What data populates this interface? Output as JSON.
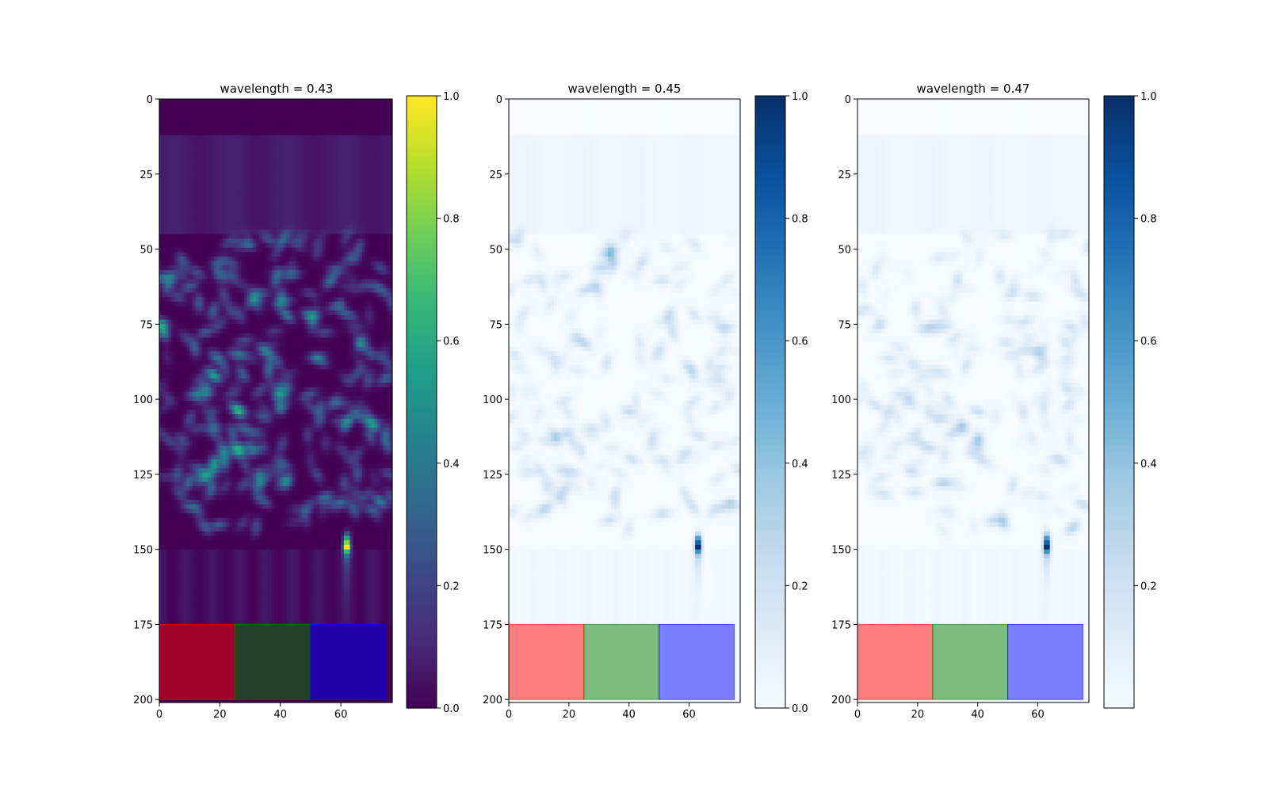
{
  "chart_data": [
    {
      "type": "heatmap",
      "title": "wavelength = 0.43",
      "colormap": "viridis",
      "field_peak": [
        62,
        148
      ],
      "xlim": [
        0,
        77
      ],
      "ylim": [
        201,
        0
      ],
      "xticks": [
        0,
        20,
        40,
        60
      ],
      "yticks": [
        0,
        25,
        50,
        75,
        100,
        125,
        150,
        175,
        200
      ],
      "colorbar": {
        "range": [
          0.0,
          1.0
        ],
        "ticks": [
          "0.0",
          "0.2",
          "0.4",
          "0.6",
          "0.8",
          "1.0"
        ]
      },
      "overlays": [
        {
          "x": [
            0,
            25
          ],
          "y": [
            175,
            200
          ],
          "color": "#ff0000",
          "opacity": 0.5
        },
        {
          "x": [
            25,
            50
          ],
          "y": [
            175,
            200
          ],
          "color": "#008000",
          "opacity": 0.5
        },
        {
          "x": [
            50,
            75
          ],
          "y": [
            175,
            200
          ],
          "color": "#0000ff",
          "opacity": 0.5
        }
      ]
    },
    {
      "type": "heatmap",
      "title": "wavelength = 0.45",
      "colormap": "Blues",
      "field_peak": [
        63,
        148
      ],
      "xlim": [
        0,
        77
      ],
      "ylim": [
        201,
        0
      ],
      "xticks": [
        0,
        20,
        40,
        60
      ],
      "yticks": [
        0,
        25,
        50,
        75,
        100,
        125,
        150,
        175,
        200
      ],
      "colorbar": {
        "range": [
          0.0,
          1.0
        ],
        "ticks": [
          "0.0",
          "0.2",
          "0.4",
          "0.6",
          "0.8",
          "1.0"
        ]
      },
      "overlays": [
        {
          "x": [
            0,
            25
          ],
          "y": [
            175,
            200
          ],
          "color": "#ff0000",
          "opacity": 0.5
        },
        {
          "x": [
            25,
            50
          ],
          "y": [
            175,
            200
          ],
          "color": "#008000",
          "opacity": 0.5
        },
        {
          "x": [
            50,
            75
          ],
          "y": [
            175,
            200
          ],
          "color": "#0000ff",
          "opacity": 0.5
        }
      ]
    },
    {
      "type": "heatmap",
      "title": "wavelength = 0.47",
      "colormap": "Blues",
      "field_peak": [
        63,
        148
      ],
      "xlim": [
        0,
        77
      ],
      "ylim": [
        201,
        0
      ],
      "xticks": [
        0,
        20,
        40,
        60
      ],
      "yticks": [
        0,
        25,
        50,
        75,
        100,
        125,
        150,
        175,
        200
      ],
      "colorbar": {
        "range": [
          0.0,
          1.0
        ],
        "ticks": [
          "0.2",
          "0.4",
          "0.6",
          "0.8",
          "1.0"
        ]
      },
      "overlays": [
        {
          "x": [
            0,
            25
          ],
          "y": [
            175,
            200
          ],
          "color": "#ff0000",
          "opacity": 0.5
        },
        {
          "x": [
            25,
            50
          ],
          "y": [
            175,
            200
          ],
          "color": "#008000",
          "opacity": 0.5
        },
        {
          "x": [
            50,
            75
          ],
          "y": [
            175,
            200
          ],
          "color": "#0000ff",
          "opacity": 0.5
        }
      ]
    }
  ]
}
